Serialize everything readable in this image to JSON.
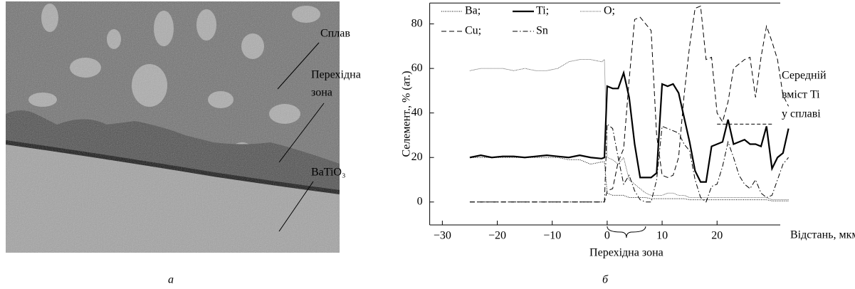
{
  "image_panel": {
    "labels": [
      "Сплав",
      "Перехідна",
      "зона",
      "BaTiO₃"
    ],
    "caption": "а"
  },
  "chart_data": {
    "type": "line",
    "caption": "б",
    "ylabel": "Cелемент., % (ат.)",
    "xlabel": "Відстань, мкм",
    "xlim": [
      -32.3,
      31.5
    ],
    "ylim": [
      -10.3,
      89.4
    ],
    "xticks": [
      {
        "value": -30,
        "label": "−30"
      },
      {
        "value": -20,
        "label": "−20"
      },
      {
        "value": -10,
        "label": "−10"
      },
      0,
      10,
      20
    ],
    "yticks": [
      0,
      20,
      40,
      60,
      80
    ],
    "x": [
      -25,
      -23,
      -21,
      -19,
      -17,
      -15,
      -13,
      -11,
      -9,
      -7,
      -5,
      -3,
      -1,
      -0.5,
      0,
      1,
      2,
      3,
      4,
      5,
      6,
      7,
      8,
      9,
      10,
      11,
      12,
      13,
      14,
      15,
      16,
      17,
      18,
      19,
      20,
      21,
      22,
      23,
      24,
      25,
      26,
      27,
      28,
      29,
      30,
      31,
      32,
      33
    ],
    "series": [
      {
        "name": "Ba;",
        "color": "#000",
        "width": 1,
        "dash": "1,1.5",
        "values": [
          20,
          20,
          20,
          20,
          20,
          20,
          20,
          20,
          20,
          19,
          19,
          17,
          18,
          18,
          4,
          3,
          3,
          3,
          2,
          2,
          2,
          2,
          1.5,
          1.5,
          1.5,
          1.5,
          1.5,
          1.5,
          1.5,
          1,
          1,
          1,
          1,
          1,
          1,
          1,
          1,
          1,
          1,
          1,
          1,
          1,
          1,
          1,
          0.5,
          0.5,
          0.5,
          0.5
        ]
      },
      {
        "name": "Ti;",
        "color": "#000",
        "width": 2.2,
        "dash": "",
        "values": [
          20,
          21,
          20,
          20.5,
          20.5,
          20,
          20.5,
          21,
          20.5,
          20,
          21,
          20,
          19.5,
          20,
          52,
          51,
          51,
          58,
          47,
          26,
          11,
          11,
          11,
          13,
          53,
          52,
          53,
          49,
          38,
          27,
          14,
          9,
          9,
          25,
          26,
          27,
          37,
          26,
          27,
          28,
          26,
          26,
          25,
          34,
          15,
          20,
          22,
          33
        ]
      },
      {
        "name": "O;",
        "color": "#000",
        "width": 0.8,
        "dash": "0.8,1.2",
        "values": [
          59,
          60,
          60,
          60,
          59,
          60,
          59,
          59,
          60,
          63,
          64,
          64,
          63,
          64,
          20,
          19,
          17,
          20,
          10,
          8,
          6,
          4,
          3,
          3,
          3,
          4,
          4,
          3,
          3,
          2,
          2,
          2,
          2,
          2,
          2,
          2,
          2,
          2,
          2,
          2,
          2,
          2,
          2,
          2,
          1,
          1,
          1,
          1
        ]
      },
      {
        "name": "Cu;",
        "color": "#000",
        "width": 1,
        "dash": "7,4",
        "values": [
          0,
          0,
          0,
          0,
          0,
          0,
          0,
          0,
          0,
          0,
          0,
          0,
          0,
          0,
          5,
          6,
          18,
          24,
          55,
          82,
          83,
          80,
          77,
          30,
          12,
          11,
          12,
          20,
          48,
          70,
          87,
          88,
          64,
          65,
          40,
          36,
          45,
          60,
          62,
          64,
          65,
          47,
          65,
          79,
          72,
          64,
          48,
          43
        ]
      },
      {
        "name": "Sn",
        "color": "#000",
        "width": 1,
        "dash": "7,3,1.5,3",
        "values": [
          0,
          0,
          0,
          0,
          0,
          0,
          0,
          0,
          0,
          0,
          0,
          0,
          0,
          0,
          35,
          33,
          20,
          8,
          12,
          5,
          1,
          0,
          0,
          10,
          34,
          33,
          32,
          31,
          26,
          23,
          10,
          2,
          0,
          7,
          8,
          16,
          27,
          20,
          12,
          8,
          6,
          10,
          4,
          2,
          3,
          10,
          17,
          20
        ]
      }
    ],
    "reference_line": {
      "value": 35,
      "x": [
        20,
        30
      ],
      "label": [
        "Середній",
        "вміст Ti",
        "у сплаві"
      ]
    },
    "bracket": {
      "x": [
        0,
        7
      ],
      "label": "Перехідна зона"
    }
  }
}
